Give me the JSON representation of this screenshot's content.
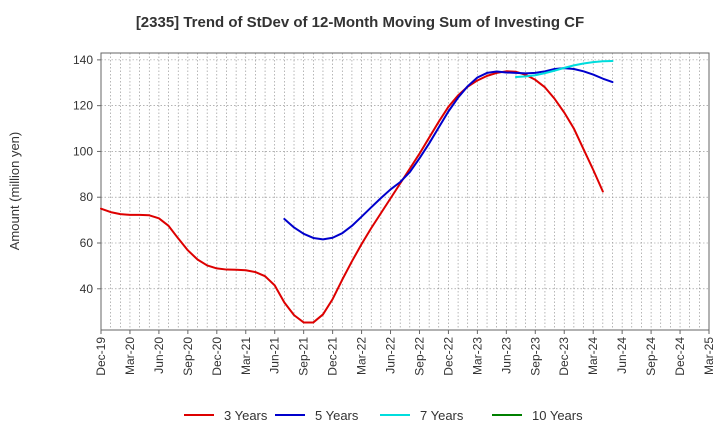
{
  "chart_data": {
    "type": "line",
    "title": "[2335]  Trend of StDev of 12-Month Moving Sum of Investing CF",
    "xlabel": "",
    "ylabel": "Amount (million yen)",
    "ylim": [
      22,
      143
    ],
    "yticks": [
      40,
      60,
      80,
      100,
      120,
      140
    ],
    "xticks": [
      "Dec-19",
      "Mar-20",
      "Jun-20",
      "Sep-20",
      "Dec-20",
      "Mar-21",
      "Jun-21",
      "Sep-21",
      "Dec-21",
      "Mar-22",
      "Jun-22",
      "Sep-22",
      "Dec-22",
      "Mar-23",
      "Jun-23",
      "Sep-23",
      "Dec-23",
      "Mar-24",
      "Jun-24",
      "Sep-24",
      "Dec-24",
      "Mar-25"
    ],
    "grid": true,
    "legend_position": "bottom",
    "series": [
      {
        "name": "3 Years",
        "color": "#dd0000",
        "points": [
          [
            0,
            75.0
          ],
          [
            1,
            73.5
          ],
          [
            2,
            72.6
          ],
          [
            3,
            72.3
          ],
          [
            4,
            72.3
          ],
          [
            5,
            72.1
          ],
          [
            6,
            70.8
          ],
          [
            7,
            67.5
          ],
          [
            8,
            62.0
          ],
          [
            9,
            56.8
          ],
          [
            10,
            52.8
          ],
          [
            11,
            50.2
          ],
          [
            12,
            48.9
          ],
          [
            13,
            48.4
          ],
          [
            14,
            48.3
          ],
          [
            15,
            48.1
          ],
          [
            16,
            47.3
          ],
          [
            17,
            45.5
          ],
          [
            18,
            41.5
          ],
          [
            19,
            34.0
          ],
          [
            20,
            28.5
          ],
          [
            21,
            25.3
          ],
          [
            22,
            25.3
          ],
          [
            23,
            28.8
          ],
          [
            24,
            35.5
          ],
          [
            25,
            44.0
          ],
          [
            26,
            52.0
          ],
          [
            27,
            59.5
          ],
          [
            28,
            66.5
          ],
          [
            29,
            73.0
          ],
          [
            30,
            79.5
          ],
          [
            31,
            86.0
          ],
          [
            32,
            92.5
          ],
          [
            33,
            99.0
          ],
          [
            34,
            106.0
          ],
          [
            35,
            113.0
          ],
          [
            36,
            119.5
          ],
          [
            37,
            124.5
          ],
          [
            38,
            128.3
          ],
          [
            39,
            131.0
          ],
          [
            40,
            133.0
          ],
          [
            41,
            134.3
          ],
          [
            42,
            135.0
          ],
          [
            43,
            134.8
          ],
          [
            44,
            133.5
          ],
          [
            45,
            131.3
          ],
          [
            46,
            128.0
          ],
          [
            47,
            123.0
          ],
          [
            48,
            117.0
          ],
          [
            49,
            110.0
          ],
          [
            50,
            101.0
          ],
          [
            51,
            92.0
          ],
          [
            52,
            82.5
          ]
        ]
      },
      {
        "name": "5 Years",
        "color": "#0000cc",
        "points": [
          [
            19,
            70.5
          ],
          [
            20,
            66.8
          ],
          [
            21,
            64.0
          ],
          [
            22,
            62.2
          ],
          [
            23,
            61.6
          ],
          [
            24,
            62.3
          ],
          [
            25,
            64.3
          ],
          [
            26,
            67.5
          ],
          [
            27,
            71.5
          ],
          [
            28,
            75.6
          ],
          [
            29,
            79.6
          ],
          [
            30,
            83.4
          ],
          [
            31,
            86.6
          ],
          [
            32,
            91.0
          ],
          [
            33,
            97.0
          ],
          [
            34,
            103.5
          ],
          [
            35,
            110.5
          ],
          [
            36,
            117.5
          ],
          [
            37,
            123.5
          ],
          [
            38,
            128.5
          ],
          [
            39,
            132.3
          ],
          [
            40,
            134.3
          ],
          [
            41,
            134.9
          ],
          [
            42,
            134.5
          ],
          [
            43,
            134.3
          ],
          [
            44,
            134.1
          ],
          [
            45,
            134.3
          ],
          [
            46,
            135.0
          ],
          [
            47,
            136.0
          ],
          [
            48,
            136.4
          ],
          [
            49,
            136.0
          ],
          [
            50,
            135.0
          ],
          [
            51,
            133.6
          ],
          [
            52,
            131.8
          ],
          [
            53,
            130.3
          ]
        ]
      },
      {
        "name": "7 Years",
        "color": "#00dddd",
        "points": [
          [
            43,
            132.5
          ],
          [
            44,
            132.8
          ],
          [
            45,
            133.3
          ],
          [
            46,
            134.2
          ],
          [
            47,
            135.3
          ],
          [
            48,
            136.5
          ],
          [
            49,
            137.6
          ],
          [
            50,
            138.4
          ],
          [
            51,
            139.0
          ],
          [
            52,
            139.4
          ],
          [
            53,
            139.5
          ]
        ]
      },
      {
        "name": "10 Years",
        "color": "#008000",
        "points": []
      }
    ]
  }
}
